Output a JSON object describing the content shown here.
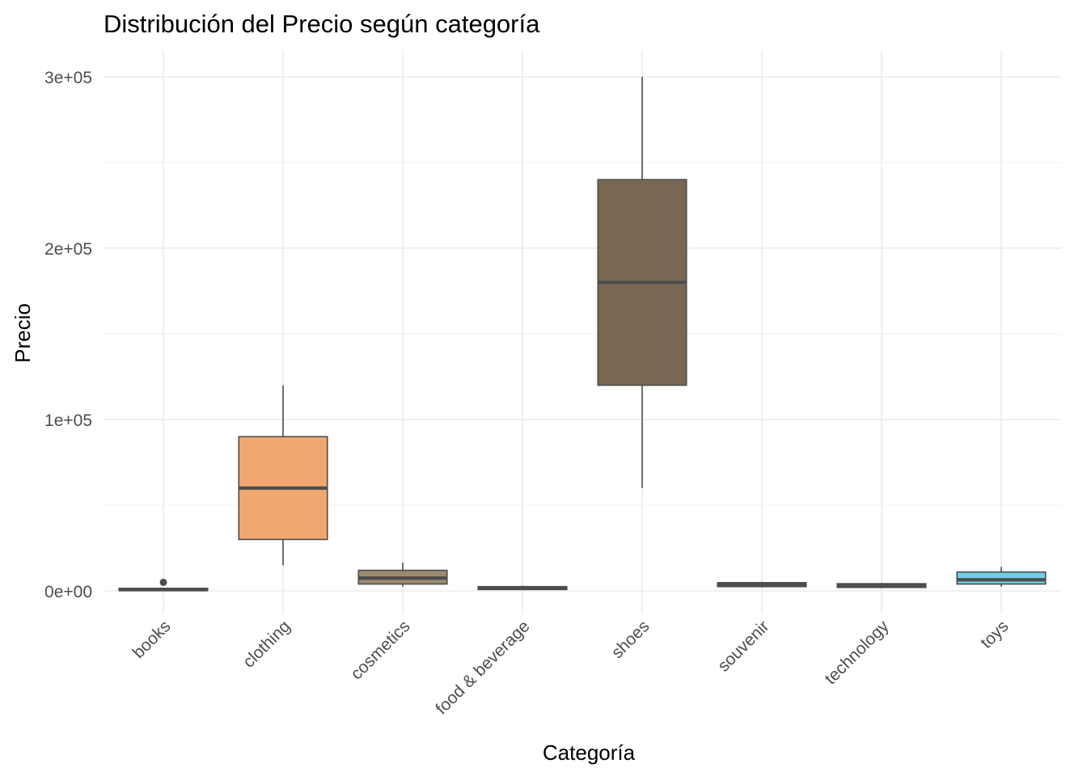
{
  "chart_data": {
    "type": "boxplot",
    "title": "Distribución del Precio según categoría",
    "xlabel": "Categoría",
    "ylabel": "Precio",
    "ylim": [
      -12000,
      312000
    ],
    "yticks": [
      0,
      100000,
      200000,
      300000
    ],
    "ytick_labels": [
      "0e+00",
      "1e+05",
      "2e+05",
      "3e+05"
    ],
    "grid": true,
    "legend": "none",
    "categories": [
      "books",
      "clothing",
      "cosmetics",
      "food & beverage",
      "shoes",
      "souvenir",
      "technology",
      "toys"
    ],
    "boxes": [
      {
        "category": "books",
        "min": 0,
        "q1": 300,
        "median": 700,
        "q3": 1500,
        "max": 1800,
        "outliers": [
          5000
        ],
        "color": "#8fa39b"
      },
      {
        "category": "clothing",
        "min": 15000,
        "q1": 30000,
        "median": 60000,
        "q3": 90000,
        "max": 120000,
        "outliers": [],
        "color": "#f0a870"
      },
      {
        "category": "cosmetics",
        "min": 2500,
        "q1": 4000,
        "median": 7500,
        "q3": 12000,
        "max": 16500,
        "outliers": [],
        "color": "#9c8a70"
      },
      {
        "category": "food & beverage",
        "min": 500,
        "q1": 800,
        "median": 1500,
        "q3": 2500,
        "max": 3000,
        "outliers": [],
        "color": "#7a7a7a"
      },
      {
        "category": "shoes",
        "min": 60000,
        "q1": 120000,
        "median": 180000,
        "q3": 240000,
        "max": 300000,
        "outliers": [],
        "color": "#7a6752"
      },
      {
        "category": "souvenir",
        "min": 2000,
        "q1": 2500,
        "median": 3500,
        "q3": 4800,
        "max": 5300,
        "outliers": [],
        "color": "#8a8a8a"
      },
      {
        "category": "technology",
        "min": 1500,
        "q1": 2000,
        "median": 3000,
        "q3": 4200,
        "max": 4700,
        "outliers": [],
        "color": "#8a8a8a"
      },
      {
        "category": "toys",
        "min": 2500,
        "q1": 4000,
        "median": 6500,
        "q3": 11000,
        "max": 14000,
        "outliers": [],
        "color": "#6dcfe8"
      }
    ],
    "line_color": "#4d4d4d"
  }
}
